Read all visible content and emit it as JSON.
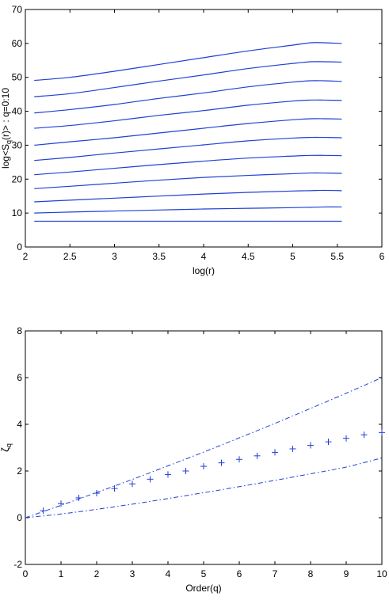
{
  "colors": {
    "series": "#1f3fd6",
    "axis": "#000000",
    "background": "#ffffff"
  },
  "chart_data": [
    {
      "type": "line",
      "title": "",
      "xlabel": "log(r)",
      "ylabel": "log<S_q(r)> : q=0:10",
      "ylabel_parts": {
        "pre": "log<S",
        "sub": "q",
        "post": "(r)> : q=0:10"
      },
      "xlim": [
        2,
        6
      ],
      "ylim": [
        0,
        70
      ],
      "xticks": [
        "2",
        "2.5",
        "3",
        "3.5",
        "4",
        "4.5",
        "5",
        "5.5",
        "6"
      ],
      "yticks": [
        "0",
        "10",
        "20",
        "30",
        "40",
        "50",
        "60",
        "70"
      ],
      "grid": false,
      "x": [
        2.1,
        2.5,
        3.0,
        3.5,
        4.0,
        4.5,
        5.0,
        5.2,
        5.35,
        5.55
      ],
      "series": [
        {
          "values": [
            7.6,
            7.6,
            7.6,
            7.6,
            7.6,
            7.6,
            7.6,
            7.6,
            7.6,
            7.6
          ]
        },
        {
          "values": [
            10.0,
            10.3,
            10.6,
            10.9,
            11.2,
            11.4,
            11.6,
            11.7,
            11.8,
            11.8
          ]
        },
        {
          "values": [
            13.3,
            13.8,
            14.4,
            15.0,
            15.6,
            16.1,
            16.5,
            16.6,
            16.7,
            16.6
          ]
        },
        {
          "values": [
            17.2,
            17.9,
            18.8,
            19.7,
            20.5,
            21.1,
            21.6,
            21.8,
            21.8,
            21.7
          ]
        },
        {
          "values": [
            21.3,
            22.1,
            23.2,
            24.3,
            25.3,
            26.2,
            26.8,
            27.0,
            27.0,
            26.9
          ]
        },
        {
          "values": [
            25.5,
            26.4,
            27.7,
            28.9,
            30.1,
            31.3,
            32.1,
            32.3,
            32.3,
            32.2
          ]
        },
        {
          "values": [
            30.0,
            31.0,
            32.2,
            33.6,
            35.0,
            36.4,
            37.5,
            37.8,
            37.8,
            37.7
          ]
        },
        {
          "values": [
            35.0,
            35.8,
            37.2,
            38.8,
            40.2,
            41.8,
            43.0,
            43.3,
            43.3,
            43.2
          ]
        },
        {
          "values": [
            39.5,
            40.5,
            42.0,
            43.8,
            45.4,
            47.2,
            48.6,
            49.0,
            49.0,
            48.8
          ]
        },
        {
          "values": [
            44.3,
            45.2,
            47.0,
            48.9,
            50.7,
            52.6,
            54.1,
            54.6,
            54.6,
            54.5
          ]
        },
        {
          "values": [
            49.1,
            50.0,
            51.8,
            53.8,
            55.8,
            57.8,
            59.5,
            60.2,
            60.2,
            60.0
          ]
        }
      ]
    },
    {
      "type": "scatter",
      "title": "",
      "xlabel": "Order(q)",
      "ylabel": "ζ_q",
      "ylabel_parts": {
        "pre": "ζ",
        "sub": "q",
        "post": ""
      },
      "xlim": [
        0,
        10
      ],
      "ylim": [
        -2,
        8
      ],
      "xticks": [
        "0",
        "1",
        "2",
        "3",
        "4",
        "5",
        "6",
        "7",
        "8",
        "9",
        "10"
      ],
      "yticks": [
        "-2",
        "0",
        "2",
        "4",
        "6",
        "8"
      ],
      "grid": false,
      "points": {
        "x": [
          0.5,
          1,
          1.5,
          2,
          2.5,
          3,
          3.5,
          4,
          4.5,
          5,
          5.5,
          6,
          6.5,
          7,
          7.5,
          8,
          8.5,
          9,
          9.5,
          10
        ],
        "y": [
          0.3,
          0.6,
          0.85,
          1.05,
          1.25,
          1.45,
          1.65,
          1.85,
          2.0,
          2.2,
          2.35,
          2.5,
          2.65,
          2.8,
          2.95,
          3.1,
          3.25,
          3.4,
          3.55,
          3.65
        ]
      },
      "lines": [
        {
          "style": "dash-dot",
          "x": [
            0,
            1,
            2,
            3,
            4,
            5,
            6,
            7,
            8,
            9,
            10
          ],
          "values": [
            0,
            0.53,
            1.08,
            1.64,
            2.22,
            2.81,
            3.42,
            4.04,
            4.68,
            5.33,
            6.0
          ]
        },
        {
          "style": "dash-dot",
          "x": [
            0,
            1,
            2,
            3,
            4,
            5,
            6,
            7,
            8,
            9,
            10
          ],
          "values": [
            0,
            0.16,
            0.36,
            0.58,
            0.82,
            1.07,
            1.33,
            1.6,
            1.88,
            2.17,
            2.56
          ]
        }
      ]
    }
  ]
}
